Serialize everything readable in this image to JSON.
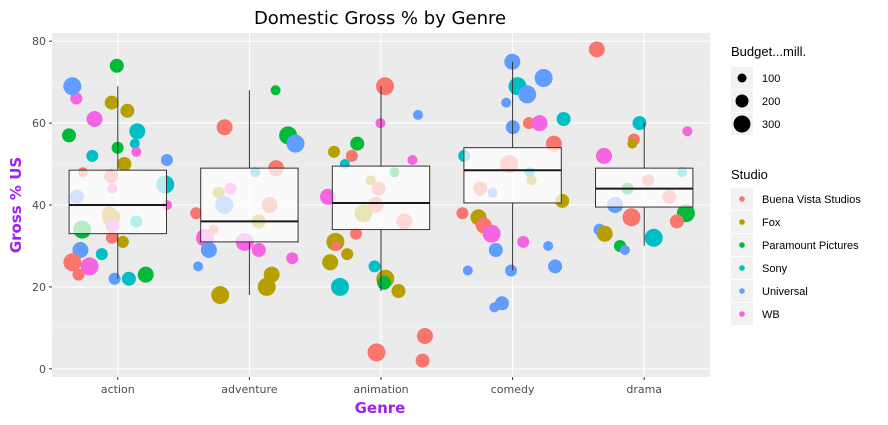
{
  "chart_data": {
    "type": "scatter",
    "title": "Domestic Gross % by Genre",
    "xlabel": "Genre",
    "ylabel": "Gross % US",
    "categories": [
      "action",
      "adventure",
      "animation",
      "comedy",
      "drama"
    ],
    "ylim": [
      -2,
      82
    ],
    "yticks": [
      0,
      20,
      40,
      60,
      80
    ],
    "grid": true,
    "boxplots": [
      {
        "category": "action",
        "whisker_low": 22,
        "q1": 33,
        "median": 40,
        "q3": 48.5,
        "whisker_high": 69
      },
      {
        "category": "adventure",
        "whisker_low": 18,
        "q1": 31,
        "median": 36,
        "q3": 49,
        "whisker_high": 68
      },
      {
        "category": "animation",
        "whisker_low": 19,
        "q1": 34,
        "median": 40.5,
        "q3": 49.5,
        "whisker_high": 69
      },
      {
        "category": "comedy",
        "whisker_low": 24,
        "q1": 40.5,
        "median": 48.5,
        "q3": 54,
        "whisker_high": 75
      },
      {
        "category": "drama",
        "whisker_low": 30,
        "q1": 39.5,
        "median": 44,
        "q3": 49,
        "whisker_high": 60
      }
    ],
    "size_legend": {
      "title": "Budget...mill.",
      "values": [
        "100",
        "200",
        "300"
      ]
    },
    "color_legend": {
      "title": "Studio",
      "entries": [
        {
          "name": "Buena Vista Studios",
          "color": "#F8766D"
        },
        {
          "name": "Fox",
          "color": "#B79F00"
        },
        {
          "name": "Paramount Pictures",
          "color": "#00BA38"
        },
        {
          "name": "Sony",
          "color": "#00BFC4"
        },
        {
          "name": "Universal",
          "color": "#619CFF"
        },
        {
          "name": "WB",
          "color": "#F564E3"
        }
      ]
    },
    "points": [
      {
        "genre": "action",
        "studio": "Paramount Pictures",
        "y": 74
      },
      {
        "genre": "action",
        "studio": "WB",
        "y": 66
      },
      {
        "genre": "action",
        "studio": "Fox",
        "y": 65
      },
      {
        "genre": "action",
        "studio": "Universal",
        "y": 69
      },
      {
        "genre": "action",
        "studio": "Fox",
        "y": 63
      },
      {
        "genre": "action",
        "studio": "WB",
        "y": 61
      },
      {
        "genre": "action",
        "studio": "Sony",
        "y": 55
      },
      {
        "genre": "action",
        "studio": "Paramount Pictures",
        "y": 54
      },
      {
        "genre": "action",
        "studio": "WB",
        "y": 53
      },
      {
        "genre": "action",
        "studio": "Fox",
        "y": 50
      },
      {
        "genre": "action",
        "studio": "Buena Vista Studios",
        "y": 48
      },
      {
        "genre": "action",
        "studio": "Sony",
        "y": 45
      },
      {
        "genre": "action",
        "studio": "Universal",
        "y": 42
      },
      {
        "genre": "action",
        "studio": "WB",
        "y": 40
      },
      {
        "genre": "action",
        "studio": "Buena Vista Studios",
        "y": 38
      },
      {
        "genre": "action",
        "studio": "Sony",
        "y": 36
      },
      {
        "genre": "action",
        "studio": "Paramount Pictures",
        "y": 34
      },
      {
        "genre": "action",
        "studio": "Buena Vista Studios",
        "y": 32
      },
      {
        "genre": "action",
        "studio": "Fox",
        "y": 31
      },
      {
        "genre": "action",
        "studio": "Universal",
        "y": 29
      },
      {
        "genre": "action",
        "studio": "Sony",
        "y": 28
      },
      {
        "genre": "action",
        "studio": "Buena Vista Studios",
        "y": 26
      },
      {
        "genre": "action",
        "studio": "WB",
        "y": 25
      },
      {
        "genre": "action",
        "studio": "Universal",
        "y": 22
      },
      {
        "genre": "action",
        "studio": "Sony",
        "y": 22
      },
      {
        "genre": "action",
        "studio": "Paramount Pictures",
        "y": 23
      },
      {
        "genre": "action",
        "studio": "Buena Vista Studios",
        "y": 23
      },
      {
        "genre": "action",
        "studio": "WB",
        "y": 44
      },
      {
        "genre": "action",
        "studio": "Paramount Pictures",
        "y": 57
      },
      {
        "genre": "action",
        "studio": "Sony",
        "y": 58
      },
      {
        "genre": "action",
        "studio": "Universal",
        "y": 51
      },
      {
        "genre": "action",
        "studio": "Buena Vista Studios",
        "y": 47
      },
      {
        "genre": "action",
        "studio": "Fox",
        "y": 37
      },
      {
        "genre": "action",
        "studio": "WB",
        "y": 35
      },
      {
        "genre": "action",
        "studio": "Sony",
        "y": 52
      },
      {
        "genre": "adventure",
        "studio": "Paramount Pictures",
        "y": 68
      },
      {
        "genre": "adventure",
        "studio": "Buena Vista Studios",
        "y": 59
      },
      {
        "genre": "adventure",
        "studio": "Paramount Pictures",
        "y": 57
      },
      {
        "genre": "adventure",
        "studio": "Universal",
        "y": 55
      },
      {
        "genre": "adventure",
        "studio": "Buena Vista Studios",
        "y": 49
      },
      {
        "genre": "adventure",
        "studio": "Sony",
        "y": 48
      },
      {
        "genre": "adventure",
        "studio": "WB",
        "y": 44
      },
      {
        "genre": "adventure",
        "studio": "Fox",
        "y": 43
      },
      {
        "genre": "adventure",
        "studio": "Buena Vista Studios",
        "y": 40
      },
      {
        "genre": "adventure",
        "studio": "Universal",
        "y": 40
      },
      {
        "genre": "adventure",
        "studio": "Buena Vista Studios",
        "y": 38
      },
      {
        "genre": "adventure",
        "studio": "Fox",
        "y": 36
      },
      {
        "genre": "adventure",
        "studio": "WB",
        "y": 32
      },
      {
        "genre": "adventure",
        "studio": "WB",
        "y": 31
      },
      {
        "genre": "adventure",
        "studio": "WB",
        "y": 29
      },
      {
        "genre": "adventure",
        "studio": "Universal",
        "y": 29
      },
      {
        "genre": "adventure",
        "studio": "WB",
        "y": 27
      },
      {
        "genre": "adventure",
        "studio": "Universal",
        "y": 25
      },
      {
        "genre": "adventure",
        "studio": "Fox",
        "y": 23
      },
      {
        "genre": "adventure",
        "studio": "Fox",
        "y": 20
      },
      {
        "genre": "adventure",
        "studio": "Fox",
        "y": 18
      },
      {
        "genre": "adventure",
        "studio": "Buena Vista Studios",
        "y": 34
      },
      {
        "genre": "adventure",
        "studio": "WB",
        "y": 33
      },
      {
        "genre": "animation",
        "studio": "Buena Vista Studios",
        "y": 69
      },
      {
        "genre": "animation",
        "studio": "Universal",
        "y": 62
      },
      {
        "genre": "animation",
        "studio": "WB",
        "y": 60
      },
      {
        "genre": "animation",
        "studio": "Paramount Pictures",
        "y": 55
      },
      {
        "genre": "animation",
        "studio": "Fox",
        "y": 53
      },
      {
        "genre": "animation",
        "studio": "Buena Vista Studios",
        "y": 52
      },
      {
        "genre": "animation",
        "studio": "WB",
        "y": 51
      },
      {
        "genre": "animation",
        "studio": "Sony",
        "y": 50
      },
      {
        "genre": "animation",
        "studio": "Paramount Pictures",
        "y": 48
      },
      {
        "genre": "animation",
        "studio": "Fox",
        "y": 46
      },
      {
        "genre": "animation",
        "studio": "Buena Vista Studios",
        "y": 44
      },
      {
        "genre": "animation",
        "studio": "WB",
        "y": 42
      },
      {
        "genre": "animation",
        "studio": "Buena Vista Studios",
        "y": 40
      },
      {
        "genre": "animation",
        "studio": "Fox",
        "y": 38
      },
      {
        "genre": "animation",
        "studio": "Buena Vista Studios",
        "y": 36
      },
      {
        "genre": "animation",
        "studio": "Buena Vista Studios",
        "y": 33
      },
      {
        "genre": "animation",
        "studio": "Fox",
        "y": 31
      },
      {
        "genre": "animation",
        "studio": "Buena Vista Studios",
        "y": 30
      },
      {
        "genre": "animation",
        "studio": "Fox",
        "y": 28
      },
      {
        "genre": "animation",
        "studio": "Fox",
        "y": 26
      },
      {
        "genre": "animation",
        "studio": "Sony",
        "y": 25
      },
      {
        "genre": "animation",
        "studio": "Fox",
        "y": 22
      },
      {
        "genre": "animation",
        "studio": "Paramount Pictures",
        "y": 21
      },
      {
        "genre": "animation",
        "studio": "Sony",
        "y": 20
      },
      {
        "genre": "animation",
        "studio": "Fox",
        "y": 19
      },
      {
        "genre": "animation",
        "studio": "Buena Vista Studios",
        "y": 8
      },
      {
        "genre": "animation",
        "studio": "Buena Vista Studios",
        "y": 4
      },
      {
        "genre": "animation",
        "studio": "Buena Vista Studios",
        "y": 2
      },
      {
        "genre": "comedy",
        "studio": "Universal",
        "y": 75
      },
      {
        "genre": "comedy",
        "studio": "Universal",
        "y": 71
      },
      {
        "genre": "comedy",
        "studio": "Sony",
        "y": 69
      },
      {
        "genre": "comedy",
        "studio": "Universal",
        "y": 67
      },
      {
        "genre": "comedy",
        "studio": "Universal",
        "y": 65
      },
      {
        "genre": "comedy",
        "studio": "Sony",
        "y": 61
      },
      {
        "genre": "comedy",
        "studio": "Buena Vista Studios",
        "y": 60
      },
      {
        "genre": "comedy",
        "studio": "WB",
        "y": 60
      },
      {
        "genre": "comedy",
        "studio": "Universal",
        "y": 59
      },
      {
        "genre": "comedy",
        "studio": "Buena Vista Studios",
        "y": 55
      },
      {
        "genre": "comedy",
        "studio": "Sony",
        "y": 52
      },
      {
        "genre": "comedy",
        "studio": "Buena Vista Studios",
        "y": 50
      },
      {
        "genre": "comedy",
        "studio": "Sony",
        "y": 48
      },
      {
        "genre": "comedy",
        "studio": "Fox",
        "y": 46
      },
      {
        "genre": "comedy",
        "studio": "Buena Vista Studios",
        "y": 44
      },
      {
        "genre": "comedy",
        "studio": "Universal",
        "y": 43
      },
      {
        "genre": "comedy",
        "studio": "Fox",
        "y": 41
      },
      {
        "genre": "comedy",
        "studio": "Buena Vista Studios",
        "y": 38
      },
      {
        "genre": "comedy",
        "studio": "Fox",
        "y": 37
      },
      {
        "genre": "comedy",
        "studio": "Buena Vista Studios",
        "y": 35
      },
      {
        "genre": "comedy",
        "studio": "WB",
        "y": 33
      },
      {
        "genre": "comedy",
        "studio": "WB",
        "y": 31
      },
      {
        "genre": "comedy",
        "studio": "Universal",
        "y": 30
      },
      {
        "genre": "comedy",
        "studio": "Universal",
        "y": 29
      },
      {
        "genre": "comedy",
        "studio": "Universal",
        "y": 25
      },
      {
        "genre": "comedy",
        "studio": "Universal",
        "y": 24
      },
      {
        "genre": "comedy",
        "studio": "Universal",
        "y": 24
      },
      {
        "genre": "comedy",
        "studio": "Universal",
        "y": 16
      },
      {
        "genre": "comedy",
        "studio": "Universal",
        "y": 15
      },
      {
        "genre": "drama",
        "studio": "Buena Vista Studios",
        "y": 78
      },
      {
        "genre": "drama",
        "studio": "Sony",
        "y": 60
      },
      {
        "genre": "drama",
        "studio": "WB",
        "y": 58
      },
      {
        "genre": "drama",
        "studio": "Buena Vista Studios",
        "y": 56
      },
      {
        "genre": "drama",
        "studio": "Fox",
        "y": 55
      },
      {
        "genre": "drama",
        "studio": "WB",
        "y": 52
      },
      {
        "genre": "drama",
        "studio": "Sony",
        "y": 48
      },
      {
        "genre": "drama",
        "studio": "Buena Vista Studios",
        "y": 46
      },
      {
        "genre": "drama",
        "studio": "Paramount Pictures",
        "y": 44
      },
      {
        "genre": "drama",
        "studio": "Buena Vista Studios",
        "y": 42
      },
      {
        "genre": "drama",
        "studio": "Universal",
        "y": 40
      },
      {
        "genre": "drama",
        "studio": "Paramount Pictures",
        "y": 38
      },
      {
        "genre": "drama",
        "studio": "Buena Vista Studios",
        "y": 37
      },
      {
        "genre": "drama",
        "studio": "Buena Vista Studios",
        "y": 36
      },
      {
        "genre": "drama",
        "studio": "Universal",
        "y": 34
      },
      {
        "genre": "drama",
        "studio": "Fox",
        "y": 33
      },
      {
        "genre": "drama",
        "studio": "Sony",
        "y": 32
      },
      {
        "genre": "drama",
        "studio": "Paramount Pictures",
        "y": 30
      },
      {
        "genre": "drama",
        "studio": "Universal",
        "y": 29
      }
    ]
  }
}
